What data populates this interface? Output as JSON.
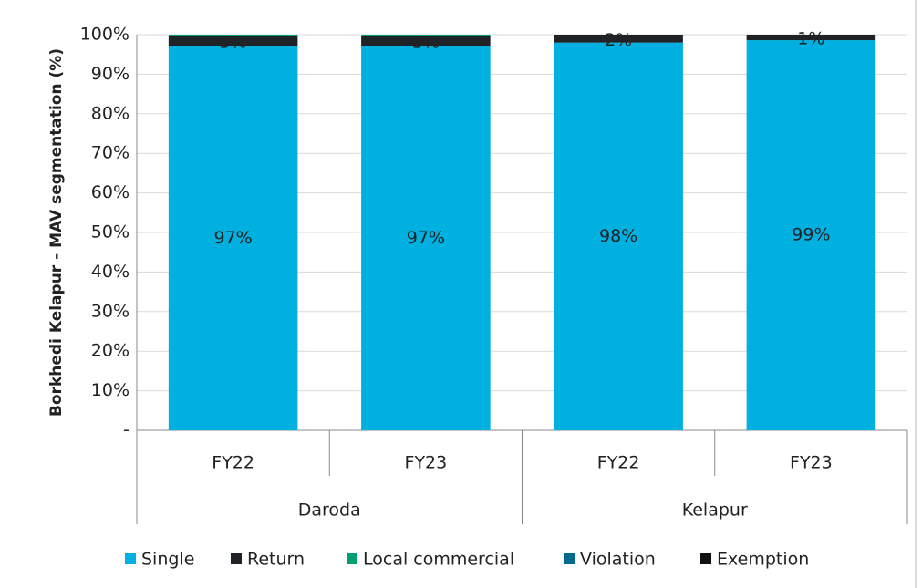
{
  "chart_data": {
    "type": "stacked_bar",
    "y_label": "Borkhedi Kelapur - MAV segmentation (%)",
    "groups": [
      {
        "name": "Daroda",
        "categories": [
          "FY22",
          "FY23"
        ]
      },
      {
        "name": "Kelapur",
        "categories": [
          "FY22",
          "FY23"
        ]
      }
    ],
    "series": [
      {
        "name": "Single",
        "color": "#00b0e0",
        "values": [
          97,
          97,
          98,
          98.6
        ],
        "value_labels": [
          "97%",
          "97%",
          "98%",
          "99%"
        ],
        "label_color": "#222222"
      },
      {
        "name": "Return",
        "color": "#1f2328",
        "values": [
          2.7,
          2.7,
          2,
          1.4
        ],
        "value_labels": [
          "3%",
          "3%",
          "2%",
          "1%"
        ],
        "label_color": "#ffffff"
      },
      {
        "name": "Local commercial",
        "color": "#00a070",
        "values": [
          0.3,
          0.3,
          0,
          0
        ]
      },
      {
        "name": "Violation",
        "color": "#006a8a",
        "values": [
          0,
          0,
          0,
          0
        ]
      },
      {
        "name": "Exemption",
        "color": "#111111",
        "values": [
          0,
          0,
          0,
          0
        ]
      }
    ],
    "ylim": [
      0,
      100
    ],
    "yticks": [
      {
        "value": 0,
        "label": "-"
      },
      {
        "value": 10,
        "label": "10%"
      },
      {
        "value": 20,
        "label": "20%"
      },
      {
        "value": 30,
        "label": "30%"
      },
      {
        "value": 40,
        "label": "40%"
      },
      {
        "value": 50,
        "label": "50%"
      },
      {
        "value": 60,
        "label": "60%"
      },
      {
        "value": 70,
        "label": "70%"
      },
      {
        "value": 80,
        "label": "80%"
      },
      {
        "value": 90,
        "label": "90%"
      },
      {
        "value": 100,
        "label": "100%"
      }
    ],
    "grid": true,
    "legend": "bottom"
  }
}
